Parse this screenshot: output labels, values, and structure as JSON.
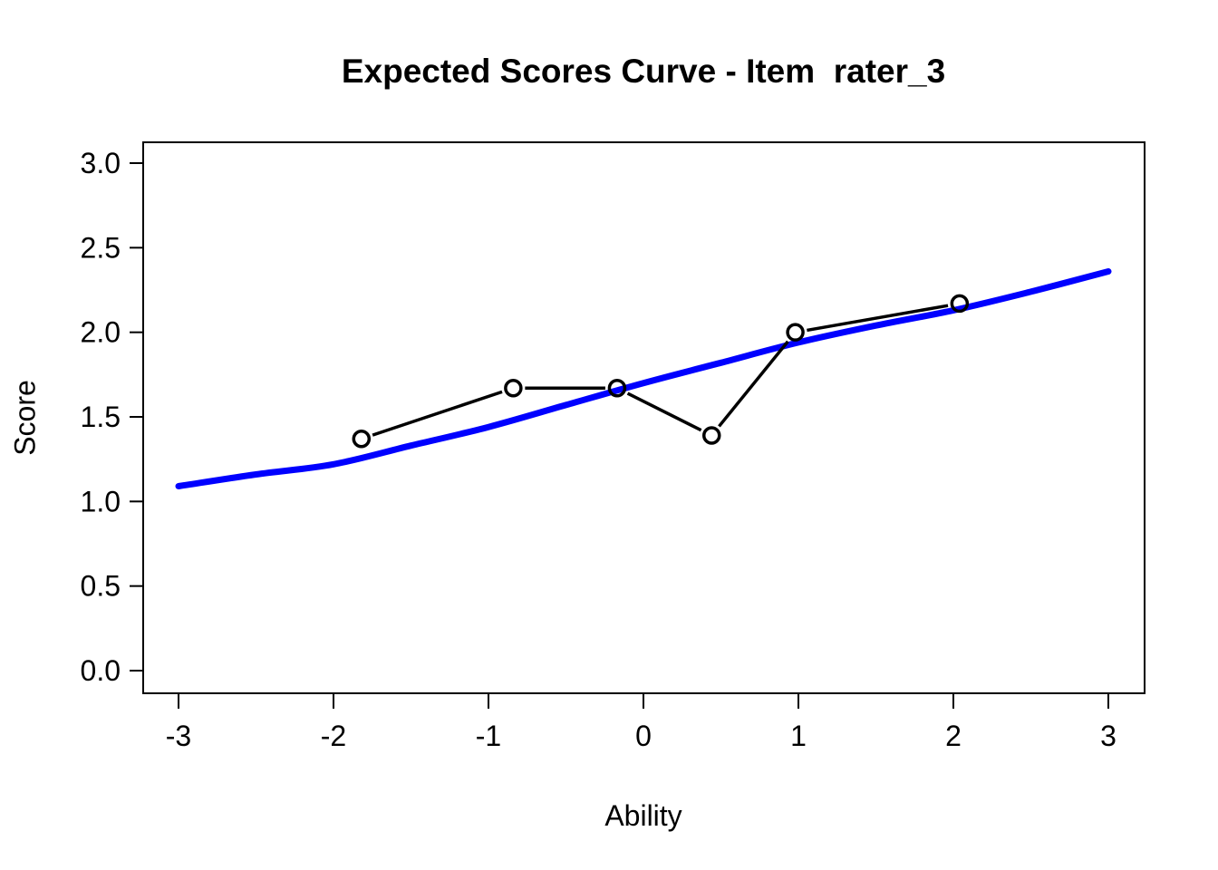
{
  "title": "Expected Scores Curve - Item  rater_3",
  "colors": {
    "model_curve": "#0000FF",
    "observed": "#000000",
    "axis": "#000000",
    "background": "#FFFFFF"
  },
  "chart_data": {
    "type": "line",
    "title": "Expected Scores Curve - Item  rater_3",
    "xlabel": "Ability",
    "ylabel": "Score",
    "xlim": [
      -3.23,
      3.23
    ],
    "ylim": [
      -0.13,
      3.12
    ],
    "x_ticks": [
      -3,
      -2,
      -1,
      0,
      1,
      2,
      3
    ],
    "x_tick_labels": [
      "-3",
      "-2",
      "-1",
      "0",
      "1",
      "2",
      "3"
    ],
    "y_ticks": [
      0.0,
      0.5,
      1.0,
      1.5,
      2.0,
      2.5,
      3.0
    ],
    "y_tick_labels": [
      "0.0",
      "0.5",
      "1.0",
      "1.5",
      "2.0",
      "2.5",
      "3.0"
    ],
    "grid": false,
    "legend": "none",
    "series": [
      {
        "name": "model-expected-score-curve",
        "type": "line",
        "smooth": true,
        "color": "#0000FF",
        "stroke_width": 7,
        "x": [
          -3.0,
          -2.5,
          -2.0,
          -1.5,
          -1.0,
          -0.5,
          0.0,
          0.5,
          1.0,
          1.5,
          2.0,
          2.5,
          3.0
        ],
        "y": [
          1.09,
          1.16,
          1.22,
          1.33,
          1.44,
          1.57,
          1.7,
          1.82,
          1.94,
          2.04,
          2.13,
          2.24,
          2.36
        ]
      },
      {
        "name": "observed-group-scores",
        "type": "line+open-points",
        "smooth": false,
        "color": "#000000",
        "stroke_width": 3.5,
        "point_radius": 8.5,
        "x": [
          -1.82,
          -0.84,
          -0.17,
          0.44,
          0.98,
          2.04
        ],
        "y": [
          1.37,
          1.67,
          1.67,
          1.39,
          2.0,
          2.17
        ]
      }
    ]
  }
}
